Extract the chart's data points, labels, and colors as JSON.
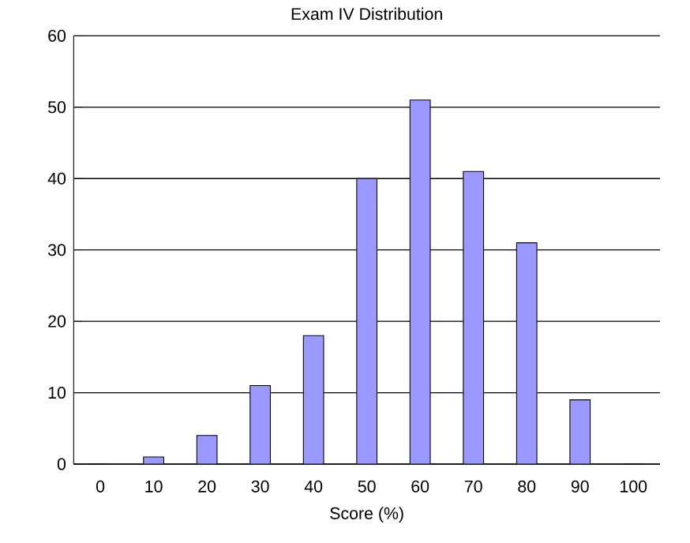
{
  "chart_data": {
    "type": "bar",
    "title": "Exam IV Distribution",
    "xlabel": "Score (%)",
    "categories": [
      "0",
      "10",
      "20",
      "30",
      "40",
      "50",
      "60",
      "70",
      "80",
      "90",
      "100"
    ],
    "values": [
      0,
      1,
      4,
      11,
      18,
      40,
      51,
      41,
      31,
      9,
      0
    ],
    "color": "#9999ff",
    "ylim": [
      0,
      60
    ],
    "yticks": [
      0,
      10,
      20,
      30,
      40,
      50,
      60
    ],
    "grid": "y"
  }
}
